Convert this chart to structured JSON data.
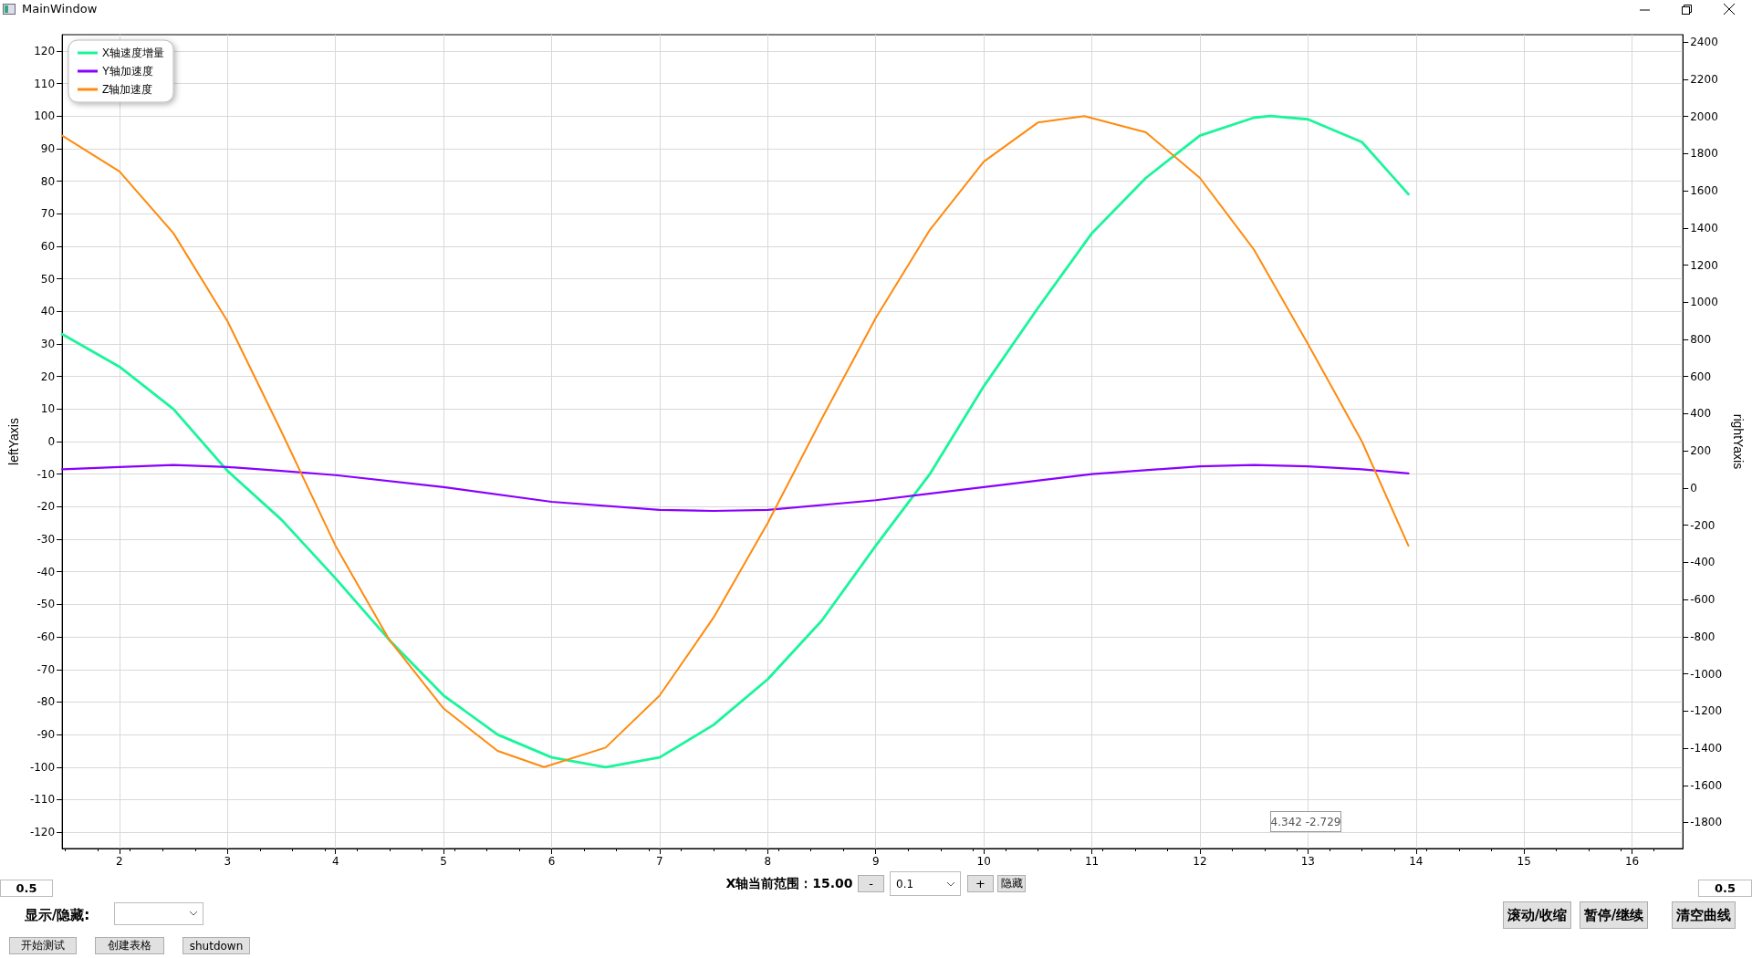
{
  "chart_data": {
    "type": "line",
    "title": "MainWindow",
    "ylabel": "leftYaxis",
    "y2label": "rightYaxis",
    "xlim": [
      1.47,
      16.47
    ],
    "xticks": [
      2,
      3,
      4,
      5,
      6,
      7,
      8,
      9,
      10,
      11,
      12,
      13,
      14,
      15,
      16
    ],
    "ylim": [
      -125,
      125
    ],
    "yticks": [
      -120,
      -110,
      -100,
      -90,
      -80,
      -70,
      -60,
      -50,
      -40,
      -30,
      -20,
      -10,
      0,
      10,
      20,
      30,
      40,
      50,
      60,
      70,
      80,
      90,
      100,
      110,
      120
    ],
    "y2lim": [
      -1940,
      2440
    ],
    "y2ticks": [
      -1800,
      -1600,
      -1400,
      -1200,
      -1000,
      -800,
      -600,
      -400,
      -200,
      0,
      200,
      400,
      600,
      800,
      1000,
      1200,
      1400,
      1600,
      1800,
      2000,
      2200,
      2400
    ],
    "grid": true,
    "legend": "top left",
    "marker": "none",
    "line_style": "solid",
    "series": [
      {
        "name": "X轴速度增量",
        "color": "#1af59a",
        "x": [
          1.47,
          2,
          2.5,
          3,
          3.5,
          4,
          4.5,
          5,
          5.5,
          6,
          6.5,
          7,
          7.5,
          8,
          8.5,
          9,
          9.5,
          10,
          10.5,
          11,
          11.5,
          12,
          12.5,
          12.65,
          13,
          13.5,
          13.93
        ],
        "values": [
          33,
          23,
          10,
          -9,
          -24,
          -42,
          -61,
          -78,
          -90,
          -97,
          -100,
          -97,
          -87,
          -73,
          -55,
          -32,
          -10,
          17,
          41,
          64,
          81,
          94,
          99.5,
          100,
          99,
          92,
          76
        ]
      },
      {
        "name": "Y轴加速度",
        "color": "#8a00ff",
        "x": [
          1.47,
          2,
          2.5,
          3,
          3.5,
          4,
          5,
          6,
          7,
          7.5,
          8,
          9,
          10,
          11,
          12,
          12.5,
          13,
          13.5,
          13.93
        ],
        "values": [
          -8.5,
          -7.8,
          -7.2,
          -7.8,
          -9,
          -10.3,
          -14,
          -18.5,
          -21,
          -21.3,
          -21,
          -18,
          -14,
          -10,
          -7.6,
          -7.2,
          -7.6,
          -8.5,
          -9.8
        ]
      },
      {
        "name": "Z轴加速度",
        "color": "#ff8a0d",
        "x": [
          1.47,
          2,
          2.5,
          3,
          3.5,
          4,
          4.5,
          5,
          5.5,
          5.93,
          6.5,
          7,
          7.5,
          8,
          8.5,
          9,
          9.5,
          10,
          10.5,
          10.93,
          11.5,
          12,
          12.5,
          13,
          13.5,
          13.93
        ],
        "values": [
          94,
          83,
          64,
          37,
          3,
          -32,
          -61,
          -82,
          -95,
          -100,
          -94,
          -78,
          -54,
          -25,
          7,
          38,
          65,
          86,
          98,
          100,
          95,
          81,
          59,
          30,
          0,
          -32
        ]
      }
    ],
    "annotations": [
      "4.342 -2.729",
      "0.5",
      "X轴当前范围：15.00",
      "-",
      "0.1",
      "+",
      "隐藏",
      "0.5",
      "显示/隐藏:",
      "滚动/收缩",
      "暂停/继续",
      "清空曲线",
      "开始测试",
      "创建表格",
      "shutdown"
    ]
  }
}
